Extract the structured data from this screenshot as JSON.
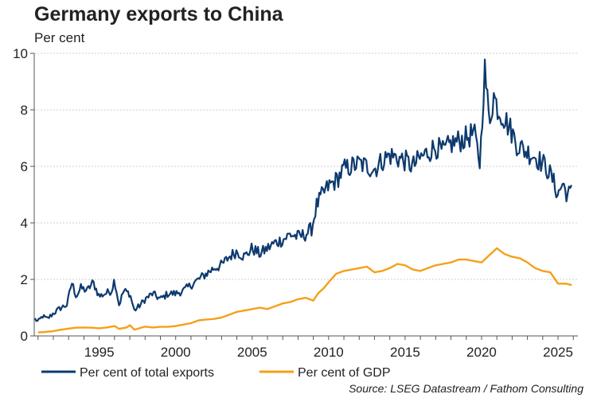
{
  "chart_data": {
    "type": "line",
    "title": "Germany exports to China",
    "ylabel": "Per cent",
    "xlabel": "",
    "source": "Source: LSEG Datastream / Fathom Consulting",
    "xlim": [
      1990.75,
      2026.3
    ],
    "ylim": [
      0,
      10
    ],
    "yticks": [
      0,
      2,
      4,
      6,
      8,
      10
    ],
    "xticks": [
      1995,
      2000,
      2005,
      2010,
      2015,
      2020,
      2025
    ],
    "grid": true,
    "legend_position": "bottom",
    "colors": {
      "total": "#0d3a6e",
      "gdp": "#f5a01a",
      "grid": "#cfcfcf",
      "axis": "#555555"
    },
    "series": [
      {
        "name": "Per cent of total exports",
        "color": "#0d3a6e",
        "points": [
          [
            1990.8,
            0.6
          ],
          [
            1991.0,
            0.5
          ],
          [
            1991.3,
            0.7
          ],
          [
            1991.6,
            0.6
          ],
          [
            1992.0,
            0.8
          ],
          [
            1992.5,
            1.0
          ],
          [
            1992.9,
            1.1
          ],
          [
            1993.2,
            1.9
          ],
          [
            1993.5,
            1.4
          ],
          [
            1993.8,
            1.7
          ],
          [
            1994.2,
            1.6
          ],
          [
            1994.6,
            1.9
          ],
          [
            1995.0,
            1.4
          ],
          [
            1995.4,
            1.5
          ],
          [
            1995.8,
            1.6
          ],
          [
            1996.0,
            2.0
          ],
          [
            1996.3,
            1.1
          ],
          [
            1996.6,
            1.6
          ],
          [
            1997.0,
            1.5
          ],
          [
            1997.3,
            0.9
          ],
          [
            1997.7,
            1.1
          ],
          [
            1998.0,
            1.3
          ],
          [
            1998.5,
            1.5
          ],
          [
            1999.0,
            1.3
          ],
          [
            1999.5,
            1.5
          ],
          [
            2000.0,
            1.5
          ],
          [
            2000.5,
            1.6
          ],
          [
            2001.0,
            1.8
          ],
          [
            2001.5,
            2.0
          ],
          [
            2002.0,
            2.2
          ],
          [
            2002.5,
            2.4
          ],
          [
            2003.0,
            2.5
          ],
          [
            2003.5,
            2.8
          ],
          [
            2004.0,
            3.0
          ],
          [
            2004.5,
            2.8
          ],
          [
            2005.0,
            3.1
          ],
          [
            2005.5,
            2.9
          ],
          [
            2006.0,
            3.1
          ],
          [
            2006.5,
            3.3
          ],
          [
            2007.0,
            3.4
          ],
          [
            2007.5,
            3.6
          ],
          [
            2008.0,
            3.5
          ],
          [
            2008.5,
            3.6
          ],
          [
            2008.9,
            3.8
          ],
          [
            2009.2,
            4.6
          ],
          [
            2009.6,
            5.0
          ],
          [
            2010.0,
            5.3
          ],
          [
            2010.5,
            5.5
          ],
          [
            2011.0,
            5.9
          ],
          [
            2011.5,
            6.0
          ],
          [
            2012.0,
            6.1
          ],
          [
            2012.5,
            6.0
          ],
          [
            2013.0,
            5.9
          ],
          [
            2013.5,
            6.2
          ],
          [
            2014.0,
            6.4
          ],
          [
            2014.5,
            6.3
          ],
          [
            2015.0,
            6.2
          ],
          [
            2015.5,
            6.0
          ],
          [
            2016.0,
            6.3
          ],
          [
            2016.5,
            6.5
          ],
          [
            2017.0,
            6.7
          ],
          [
            2017.5,
            6.5
          ],
          [
            2018.0,
            6.8
          ],
          [
            2018.5,
            6.9
          ],
          [
            2019.0,
            7.0
          ],
          [
            2019.5,
            7.2
          ],
          [
            2019.9,
            6.1
          ],
          [
            2020.2,
            9.5
          ],
          [
            2020.5,
            7.6
          ],
          [
            2020.8,
            8.5
          ],
          [
            2021.1,
            8.0
          ],
          [
            2021.4,
            7.8
          ],
          [
            2021.7,
            7.5
          ],
          [
            2022.0,
            7.2
          ],
          [
            2022.3,
            6.8
          ],
          [
            2022.7,
            6.6
          ],
          [
            2023.0,
            6.5
          ],
          [
            2023.4,
            6.4
          ],
          [
            2023.8,
            6.2
          ],
          [
            2024.2,
            6.0
          ],
          [
            2024.6,
            5.6
          ],
          [
            2025.0,
            5.0
          ],
          [
            2025.3,
            5.4
          ],
          [
            2025.6,
            5.0
          ],
          [
            2025.9,
            5.1
          ]
        ]
      },
      {
        "name": "Per cent of GDP",
        "color": "#f5a01a",
        "points": [
          [
            1991.0,
            0.12
          ],
          [
            1991.5,
            0.14
          ],
          [
            1992.0,
            0.17
          ],
          [
            1992.5,
            0.22
          ],
          [
            1993.0,
            0.26
          ],
          [
            1993.5,
            0.29
          ],
          [
            1994.0,
            0.3
          ],
          [
            1994.5,
            0.29
          ],
          [
            1995.0,
            0.27
          ],
          [
            1995.5,
            0.3
          ],
          [
            1996.0,
            0.35
          ],
          [
            1996.3,
            0.25
          ],
          [
            1996.8,
            0.3
          ],
          [
            1997.0,
            0.38
          ],
          [
            1997.3,
            0.22
          ],
          [
            1997.8,
            0.3
          ],
          [
            1998.0,
            0.33
          ],
          [
            1998.5,
            0.3
          ],
          [
            1999.0,
            0.32
          ],
          [
            1999.5,
            0.32
          ],
          [
            2000.0,
            0.35
          ],
          [
            2000.5,
            0.4
          ],
          [
            2001.0,
            0.45
          ],
          [
            2001.5,
            0.55
          ],
          [
            2002.0,
            0.58
          ],
          [
            2002.5,
            0.6
          ],
          [
            2003.0,
            0.65
          ],
          [
            2003.5,
            0.75
          ],
          [
            2004.0,
            0.85
          ],
          [
            2004.5,
            0.9
          ],
          [
            2005.0,
            0.95
          ],
          [
            2005.5,
            1.0
          ],
          [
            2006.0,
            0.95
          ],
          [
            2006.5,
            1.05
          ],
          [
            2007.0,
            1.15
          ],
          [
            2007.5,
            1.2
          ],
          [
            2008.0,
            1.3
          ],
          [
            2008.5,
            1.35
          ],
          [
            2009.0,
            1.25
          ],
          [
            2009.3,
            1.5
          ],
          [
            2009.7,
            1.7
          ],
          [
            2010.0,
            1.9
          ],
          [
            2010.5,
            2.2
          ],
          [
            2011.0,
            2.3
          ],
          [
            2011.5,
            2.35
          ],
          [
            2012.0,
            2.4
          ],
          [
            2012.5,
            2.45
          ],
          [
            2013.0,
            2.25
          ],
          [
            2013.5,
            2.3
          ],
          [
            2014.0,
            2.4
          ],
          [
            2014.5,
            2.55
          ],
          [
            2015.0,
            2.5
          ],
          [
            2015.5,
            2.35
          ],
          [
            2016.0,
            2.3
          ],
          [
            2016.5,
            2.4
          ],
          [
            2017.0,
            2.5
          ],
          [
            2017.5,
            2.55
          ],
          [
            2018.0,
            2.6
          ],
          [
            2018.5,
            2.7
          ],
          [
            2019.0,
            2.7
          ],
          [
            2019.5,
            2.65
          ],
          [
            2020.0,
            2.6
          ],
          [
            2020.5,
            2.85
          ],
          [
            2021.0,
            3.1
          ],
          [
            2021.5,
            2.9
          ],
          [
            2022.0,
            2.8
          ],
          [
            2022.5,
            2.75
          ],
          [
            2023.0,
            2.6
          ],
          [
            2023.5,
            2.4
          ],
          [
            2024.0,
            2.3
          ],
          [
            2024.5,
            2.25
          ],
          [
            2025.0,
            1.85
          ],
          [
            2025.5,
            1.85
          ],
          [
            2025.9,
            1.8
          ]
        ]
      }
    ]
  }
}
